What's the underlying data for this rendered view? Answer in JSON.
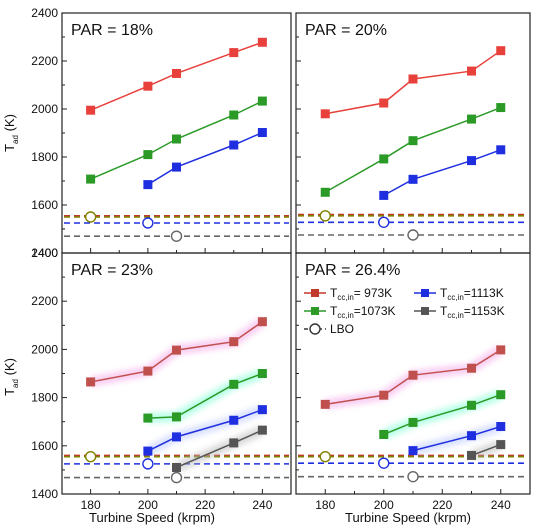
{
  "figure": {
    "xlabel": "Turbine Speed (krpm)",
    "ylabel_main": "T",
    "ylabel_sub": "ad",
    "ylabel_unit": " (K)"
  },
  "chart_data": [
    {
      "type": "line",
      "title": "PAR = 18%",
      "x_range": [
        170,
        250
      ],
      "y_range": [
        1400,
        2400
      ],
      "x_ticks": [
        "180",
        "200",
        "220",
        "240"
      ],
      "y_ticks": [
        "1400",
        "1600",
        "1800",
        "2000",
        "2200",
        "2400"
      ],
      "series": [
        {
          "key": "973",
          "color": "#e8413c",
          "marker": "square",
          "x": [
            180,
            200,
            210,
            230,
            240
          ],
          "y": [
            1995,
            2095,
            2148,
            2235,
            2278
          ]
        },
        {
          "key": "1073",
          "color": "#2b9a27",
          "marker": "square",
          "x": [
            180,
            200,
            210,
            230,
            240
          ],
          "y": [
            1708,
            1810,
            1875,
            1975,
            2033
          ]
        },
        {
          "key": "1113",
          "color": "#1f2fe0",
          "marker": "square",
          "x": [
            200,
            210,
            230,
            240
          ],
          "y": [
            1685,
            1758,
            1850,
            1902
          ]
        }
      ],
      "lbo": [
        {
          "key": "973",
          "color": "#c0392b",
          "y": 1555,
          "x": 180
        },
        {
          "key": "1073",
          "color": "#808000",
          "y": 1550,
          "x": 180
        },
        {
          "key": "1113",
          "color": "#1f2fe0",
          "y": 1525,
          "x": 200
        },
        {
          "key": "1153",
          "color": "#666666",
          "y": 1470,
          "x": 210
        }
      ],
      "glow": false
    },
    {
      "type": "line",
      "title": "PAR = 20%",
      "x_range": [
        170,
        250
      ],
      "y_range": [
        1400,
        2400
      ],
      "x_ticks": [
        "180",
        "200",
        "220",
        "240"
      ],
      "y_ticks": [
        "1400",
        "1600",
        "1800",
        "2000",
        "2200",
        "2400"
      ],
      "series": [
        {
          "key": "973",
          "color": "#e8413c",
          "marker": "square",
          "x": [
            180,
            200,
            210,
            230,
            240
          ],
          "y": [
            1980,
            2025,
            2125,
            2158,
            2243
          ]
        },
        {
          "key": "1073",
          "color": "#2b9a27",
          "marker": "square",
          "x": [
            180,
            200,
            210,
            230,
            240
          ],
          "y": [
            1653,
            1792,
            1868,
            1958,
            2006
          ]
        },
        {
          "key": "1113",
          "color": "#1f2fe0",
          "marker": "square",
          "x": [
            200,
            210,
            230,
            240
          ],
          "y": [
            1640,
            1707,
            1785,
            1830
          ]
        }
      ],
      "lbo": [
        {
          "key": "973",
          "color": "#c0392b",
          "y": 1560,
          "x": 180
        },
        {
          "key": "1073",
          "color": "#808000",
          "y": 1555,
          "x": 180
        },
        {
          "key": "1113",
          "color": "#1f2fe0",
          "y": 1528,
          "x": 200
        },
        {
          "key": "1153",
          "color": "#666666",
          "y": 1475,
          "x": 210
        }
      ],
      "glow": false
    },
    {
      "type": "line",
      "title": "PAR = 23%",
      "x_range": [
        170,
        250
      ],
      "y_range": [
        1400,
        2400
      ],
      "x_ticks": [
        "180",
        "200",
        "220",
        "240"
      ],
      "y_ticks": [
        "1400",
        "1600",
        "1800",
        "2000",
        "2200",
        "2400"
      ],
      "series": [
        {
          "key": "973",
          "color": "#c0504d",
          "marker": "square",
          "x": [
            180,
            200,
            210,
            230,
            240
          ],
          "y": [
            1865,
            1910,
            1997,
            2032,
            2115
          ]
        },
        {
          "key": "1073",
          "color": "#2b9a27",
          "marker": "square",
          "x": [
            200,
            210,
            230,
            240
          ],
          "y": [
            1715,
            1720,
            1855,
            1900
          ]
        },
        {
          "key": "1113",
          "color": "#1f2fe0",
          "marker": "square",
          "x": [
            200,
            210,
            230,
            240
          ],
          "y": [
            1578,
            1637,
            1706,
            1750
          ]
        },
        {
          "key": "1153",
          "color": "#555555",
          "marker": "square",
          "x": [
            210,
            230,
            240
          ],
          "y": [
            1510,
            1612,
            1665
          ]
        }
      ],
      "lbo": [
        {
          "key": "973",
          "color": "#c0392b",
          "y": 1560,
          "x": 180
        },
        {
          "key": "1073",
          "color": "#808000",
          "y": 1555,
          "x": 180
        },
        {
          "key": "1113",
          "color": "#1f2fe0",
          "y": 1525,
          "x": 200
        },
        {
          "key": "1153",
          "color": "#666666",
          "y": 1468,
          "x": 210
        }
      ],
      "glow": true
    },
    {
      "type": "line",
      "title": "PAR = 26.4%",
      "x_range": [
        170,
        250
      ],
      "y_range": [
        1400,
        2400
      ],
      "x_ticks": [
        "180",
        "200",
        "220",
        "240"
      ],
      "y_ticks": [
        "1400",
        "1600",
        "1800",
        "2000",
        "2200",
        "2400"
      ],
      "series": [
        {
          "key": "973",
          "color": "#c0504d",
          "marker": "square",
          "x": [
            180,
            200,
            210,
            230,
            240
          ],
          "y": [
            1772,
            1810,
            1893,
            1922,
            1998
          ]
        },
        {
          "key": "1073",
          "color": "#2b9a27",
          "marker": "square",
          "x": [
            200,
            210,
            230,
            240
          ],
          "y": [
            1647,
            1697,
            1768,
            1812
          ]
        },
        {
          "key": "1113",
          "color": "#1f2fe0",
          "marker": "square",
          "x": [
            210,
            230,
            240
          ],
          "y": [
            1580,
            1642,
            1680
          ]
        },
        {
          "key": "1153",
          "color": "#555555",
          "marker": "square",
          "x": [
            230,
            240
          ],
          "y": [
            1560,
            1605
          ]
        }
      ],
      "lbo": [
        {
          "key": "973",
          "color": "#c0392b",
          "y": 1560,
          "x": 180
        },
        {
          "key": "1073",
          "color": "#808000",
          "y": 1555,
          "x": 180
        },
        {
          "key": "1113",
          "color": "#1f2fe0",
          "y": 1528,
          "x": 200
        },
        {
          "key": "1153",
          "color": "#666666",
          "y": 1472,
          "x": 210
        }
      ],
      "glow": true,
      "legend": {
        "placement": "upper",
        "entries": [
          {
            "key": "973",
            "color": "#c0392b",
            "kind": "square",
            "main": "T",
            "sub": "cc,in",
            "rest": "= 973K"
          },
          {
            "key": "1113",
            "color": "#1f2fe0",
            "kind": "square",
            "main": "T",
            "sub": "cc,in",
            "rest": "=1113K"
          },
          {
            "key": "1073",
            "color": "#2b9a27",
            "kind": "square",
            "main": "T",
            "sub": "cc,in",
            "rest": "=1073K"
          },
          {
            "key": "1153",
            "color": "#555555",
            "kind": "square",
            "main": "T",
            "sub": "cc,in",
            "rest": "=1153K"
          },
          {
            "key": "lbo",
            "color": "#333333",
            "kind": "circle",
            "main": "LBO",
            "sub": "",
            "rest": ""
          }
        ]
      }
    }
  ]
}
